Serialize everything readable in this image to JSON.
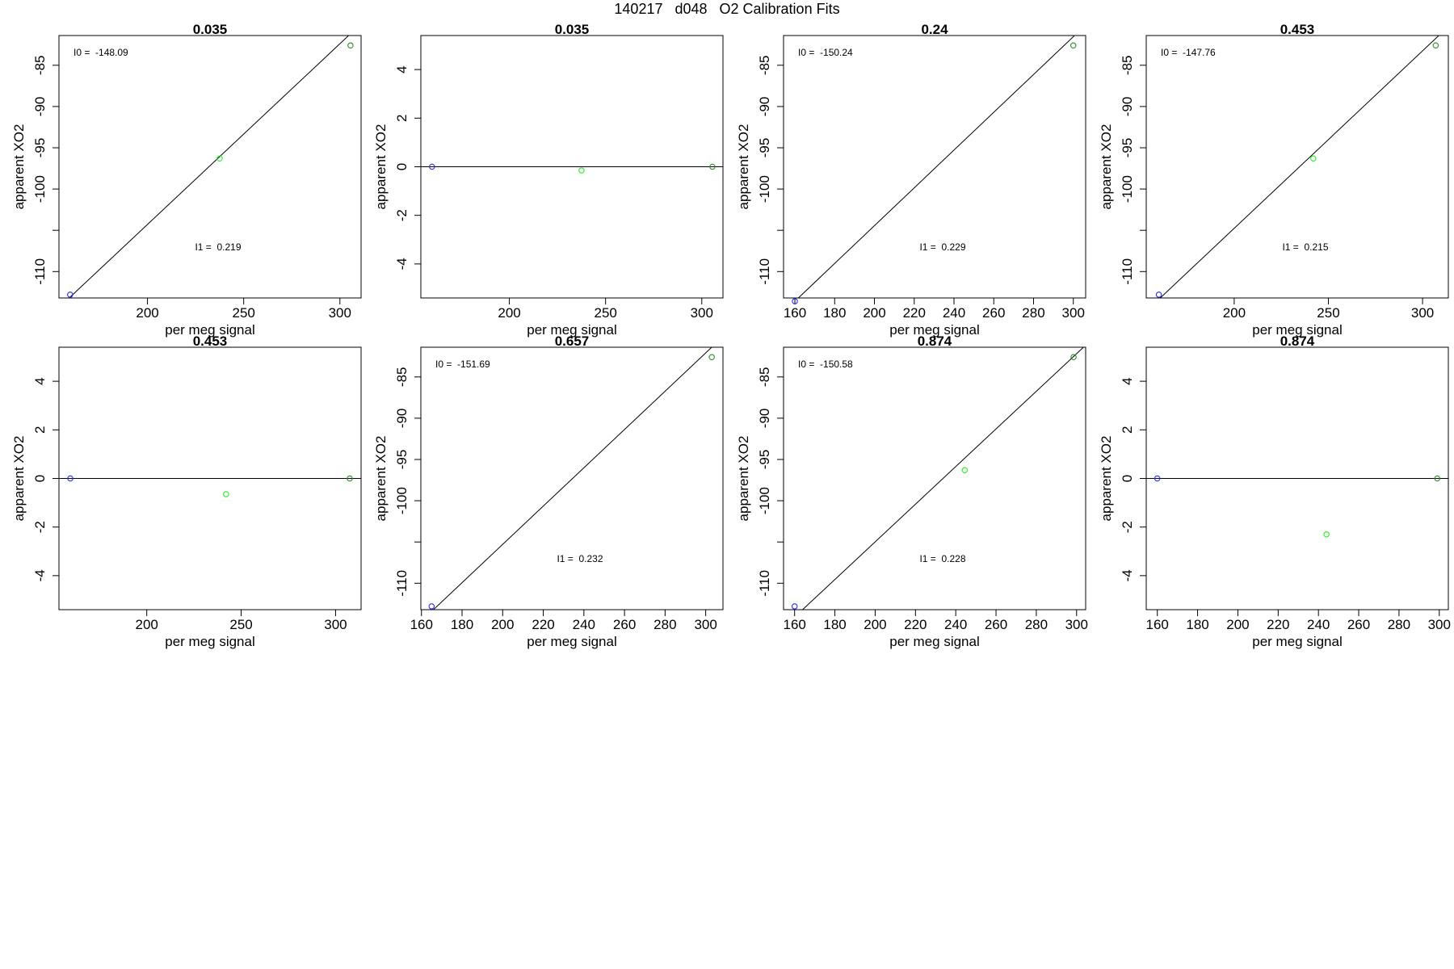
{
  "page_title": "140217   d048   O2 Calibration Fits",
  "colors": {
    "axis": "#000000",
    "fit_line": "#000000",
    "point_low": "#2a2aff",
    "point_mid": "#22ee22",
    "point_high": "#2a8a2a"
  },
  "chart_data": [
    {
      "type": "scatter",
      "title": "0.035",
      "xlabel": "per meg signal",
      "ylabel": "apparent XO2",
      "xlim": [
        154,
        311
      ],
      "ylim": [
        -113.2,
        -81.4
      ],
      "xticks": [
        200,
        250,
        300
      ],
      "yticks": [
        -110,
        -105,
        -100,
        -95,
        -90,
        -85
      ],
      "ytick_labels": [
        "-110",
        "",
        "-100",
        "-95",
        "-90",
        "-85"
      ],
      "points": [
        {
          "x": 159.8,
          "y": -112.8
        },
        {
          "x": 237.5,
          "y": -96.3
        },
        {
          "x": 305.5,
          "y": -82.6
        }
      ],
      "fit": {
        "slope": 0.219,
        "intercept": -148.09
      },
      "annotations": {
        "intercept": "I0 =  -148.09",
        "slope": "I1 =  0.219"
      }
    },
    {
      "type": "scatter",
      "title": "0.035",
      "xlabel": "per meg signal",
      "ylabel": "apparent XO2",
      "xlim": [
        154,
        311
      ],
      "ylim": [
        -5.4,
        5.4
      ],
      "xticks": [
        200,
        250,
        300
      ],
      "yticks": [
        -4,
        -2,
        0,
        2,
        4
      ],
      "ytick_labels": [
        "-4",
        "-2",
        "0",
        "2",
        "4"
      ],
      "points": [
        {
          "x": 159.8,
          "y": 0
        },
        {
          "x": 237.5,
          "y": -0.15
        },
        {
          "x": 305.5,
          "y": 0
        }
      ],
      "fit": {
        "slope": 0,
        "intercept": 0
      },
      "annotations": {}
    },
    {
      "type": "scatter",
      "title": "0.24",
      "xlabel": "per meg signal",
      "ylabel": "apparent XO2",
      "xlim": [
        154.3,
        306.2
      ],
      "ylim": [
        -113.2,
        -81.4
      ],
      "xticks": [
        160,
        180,
        200,
        220,
        240,
        260,
        280,
        300
      ],
      "yticks": [
        -110,
        -105,
        -100,
        -95,
        -90,
        -85
      ],
      "ytick_labels": [
        "-110",
        "",
        "-100",
        "-95",
        "-90",
        "-85"
      ],
      "points": [
        {
          "x": 160,
          "y": -113.6
        },
        {
          "x": 300,
          "y": -82.6
        }
      ],
      "fit": {
        "slope": 0.229,
        "intercept": -150.24
      },
      "annotations": {
        "intercept": "I0 =  -150.24",
        "slope": "I1 =  0.229"
      }
    },
    {
      "type": "scatter",
      "title": "0.453",
      "xlabel": "per meg signal",
      "ylabel": "apparent XO2",
      "xlim": [
        153.3,
        313.7
      ],
      "ylim": [
        -113.2,
        -81.4
      ],
      "xticks": [
        200,
        250,
        300
      ],
      "yticks": [
        -110,
        -105,
        -100,
        -95,
        -90,
        -85
      ],
      "ytick_labels": [
        "-110",
        "",
        "-100",
        "-95",
        "-90",
        "-85"
      ],
      "points": [
        {
          "x": 160,
          "y": -112.8
        },
        {
          "x": 242,
          "y": -96.3
        },
        {
          "x": 307,
          "y": -82.6
        }
      ],
      "fit": {
        "slope": 0.215,
        "intercept": -147.76
      },
      "annotations": {
        "intercept": "I0 =  -147.76",
        "slope": "I1 =  0.215"
      }
    },
    {
      "type": "scatter",
      "title": "0.453",
      "xlabel": "per meg signal",
      "ylabel": "apparent XO2",
      "xlim": [
        153.5,
        313.5
      ],
      "ylim": [
        -5.4,
        5.4
      ],
      "xticks": [
        200,
        250,
        300
      ],
      "yticks": [
        -4,
        -2,
        0,
        2,
        4
      ],
      "ytick_labels": [
        "-4",
        "-2",
        "0",
        "2",
        "4"
      ],
      "points": [
        {
          "x": 159.5,
          "y": 0
        },
        {
          "x": 242,
          "y": -0.65
        },
        {
          "x": 307.5,
          "y": 0
        }
      ],
      "fit": {
        "slope": 0,
        "intercept": 0
      },
      "annotations": {}
    },
    {
      "type": "scatter",
      "title": "0.657",
      "xlabel": "per meg signal",
      "ylabel": "apparent XO2",
      "xlim": [
        159.7,
        308.5
      ],
      "ylim": [
        -113.2,
        -81.4
      ],
      "xticks": [
        160,
        180,
        200,
        220,
        240,
        260,
        280,
        300
      ],
      "yticks": [
        -110,
        -105,
        -100,
        -95,
        -90,
        -85
      ],
      "ytick_labels": [
        "-110",
        "",
        "-100",
        "-95",
        "-90",
        "-85"
      ],
      "points": [
        {
          "x": 165,
          "y": -112.8
        },
        {
          "x": 303,
          "y": -82.6
        }
      ],
      "fit": {
        "slope": 0.232,
        "intercept": -151.69
      },
      "annotations": {
        "intercept": "I0 =  -151.69",
        "slope": "I1 =  0.232"
      }
    },
    {
      "type": "scatter",
      "title": "0.874",
      "xlabel": "per meg signal",
      "ylabel": "apparent XO2",
      "xlim": [
        154.5,
        304.5
      ],
      "ylim": [
        -113.2,
        -81.4
      ],
      "xticks": [
        160,
        180,
        200,
        220,
        240,
        260,
        280,
        300
      ],
      "yticks": [
        -110,
        -105,
        -100,
        -95,
        -90,
        -85
      ],
      "ytick_labels": [
        "-110",
        "",
        "-100",
        "-95",
        "-90",
        "-85"
      ],
      "points": [
        {
          "x": 160,
          "y": -112.8
        },
        {
          "x": 244.5,
          "y": -96.3
        },
        {
          "x": 298.5,
          "y": -82.6
        }
      ],
      "fit": {
        "slope": 0.228,
        "intercept": -150.58
      },
      "annotations": {
        "intercept": "I0 =  -150.58",
        "slope": "I1 =  0.228"
      }
    },
    {
      "type": "scatter",
      "title": "0.874",
      "xlabel": "per meg signal",
      "ylabel": "apparent XO2",
      "xlim": [
        154.5,
        304.5
      ],
      "ylim": [
        -5.4,
        5.4
      ],
      "xticks": [
        160,
        180,
        200,
        220,
        240,
        260,
        280,
        300
      ],
      "yticks": [
        -4,
        -2,
        0,
        2,
        4
      ],
      "ytick_labels": [
        "-4",
        "-2",
        "0",
        "2",
        "4"
      ],
      "points": [
        {
          "x": 160,
          "y": 0
        },
        {
          "x": 244,
          "y": -2.3
        },
        {
          "x": 299,
          "y": 0
        }
      ],
      "fit": {
        "slope": 0,
        "intercept": 0
      },
      "annotations": {}
    }
  ]
}
